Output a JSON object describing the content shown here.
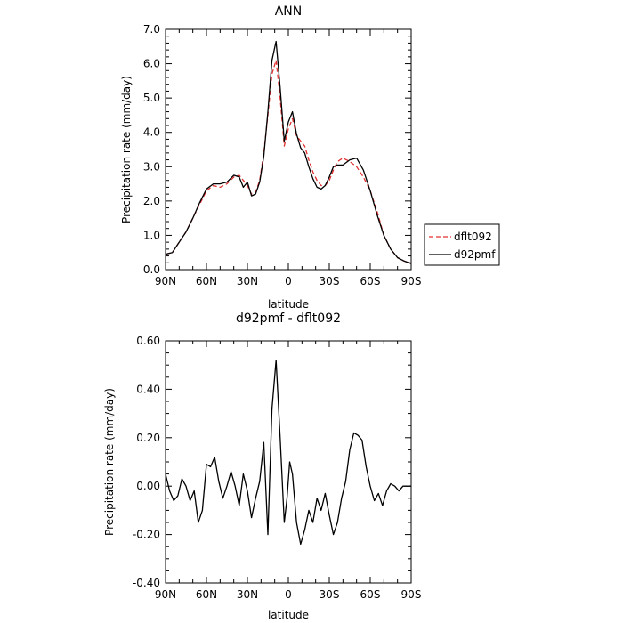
{
  "chart_data": [
    {
      "type": "line",
      "title": "ANN",
      "xlabel": "latitude",
      "ylabel": "Precipitation rate (mm/day)",
      "xticks": [
        "90N",
        "60N",
        "30N",
        "0",
        "30S",
        "60S",
        "90S"
      ],
      "xlim": [
        90,
        -90
      ],
      "ylim": [
        0.0,
        7.0
      ],
      "yticks": [
        "0.0",
        "1.0",
        "2.0",
        "3.0",
        "4.0",
        "5.0",
        "6.0",
        "7.0"
      ],
      "legend_position": "right, outside plot",
      "series": [
        {
          "name": "dflt092",
          "color": "#e03030",
          "dash": "dashed",
          "x": [
            90,
            85,
            80,
            75,
            70,
            65,
            60,
            55,
            50,
            45,
            40,
            36,
            33,
            30,
            27,
            24,
            21,
            18,
            15,
            12,
            9,
            6,
            3,
            0,
            -3,
            -6,
            -9,
            -12,
            -15,
            -18,
            -21,
            -24,
            -27,
            -30,
            -33,
            -36,
            -40,
            -45,
            -50,
            -55,
            -60,
            -65,
            -70,
            -75,
            -80,
            -85,
            -90
          ],
          "y": [
            0.45,
            0.5,
            0.8,
            1.1,
            1.5,
            1.9,
            2.3,
            2.45,
            2.4,
            2.5,
            2.7,
            2.75,
            2.6,
            2.45,
            2.2,
            2.25,
            2.6,
            3.4,
            4.5,
            5.7,
            6.1,
            5.0,
            3.6,
            4.1,
            4.4,
            3.9,
            3.75,
            3.6,
            3.2,
            2.85,
            2.6,
            2.45,
            2.45,
            2.6,
            2.9,
            3.15,
            3.25,
            3.15,
            3.0,
            2.7,
            2.3,
            1.7,
            1.0,
            0.6,
            0.35,
            0.25,
            0.18
          ]
        },
        {
          "name": "d92pmf",
          "color": "#000000",
          "dash": "solid",
          "x": [
            90,
            85,
            80,
            75,
            70,
            65,
            60,
            55,
            50,
            45,
            40,
            36,
            33,
            30,
            27,
            24,
            21,
            18,
            15,
            12,
            9,
            6,
            3,
            0,
            -3,
            -6,
            -9,
            -12,
            -15,
            -18,
            -21,
            -24,
            -27,
            -30,
            -33,
            -36,
            -40,
            -45,
            -50,
            -55,
            -60,
            -65,
            -70,
            -75,
            -80,
            -85,
            -90
          ],
          "y": [
            0.45,
            0.5,
            0.8,
            1.1,
            1.5,
            1.95,
            2.35,
            2.5,
            2.5,
            2.55,
            2.75,
            2.7,
            2.4,
            2.55,
            2.15,
            2.2,
            2.55,
            3.3,
            4.6,
            6.1,
            6.65,
            5.3,
            3.75,
            4.3,
            4.6,
            3.95,
            3.55,
            3.4,
            3.0,
            2.65,
            2.4,
            2.35,
            2.45,
            2.7,
            3.0,
            3.05,
            3.05,
            3.2,
            3.25,
            2.9,
            2.3,
            1.6,
            1.0,
            0.6,
            0.35,
            0.25,
            0.18
          ]
        }
      ]
    },
    {
      "type": "line",
      "title": "d92pmf - dflt092",
      "xlabel": "latitude",
      "ylabel": "Precipitation rate (mm/day)",
      "xticks": [
        "90N",
        "60N",
        "30N",
        "0",
        "30S",
        "60S",
        "90S"
      ],
      "xlim": [
        90,
        -90
      ],
      "ylim": [
        -0.4,
        0.6
      ],
      "yticks": [
        "-0.40",
        "-0.20",
        "0.00",
        "0.20",
        "0.40",
        "0.60"
      ],
      "series": [
        {
          "color": "#000000",
          "x": [
            90,
            87,
            84,
            81,
            78,
            75,
            72,
            69,
            66,
            63,
            60,
            57,
            54,
            51,
            48,
            45,
            42,
            39,
            36,
            33,
            30,
            27,
            24,
            21,
            18,
            15,
            12,
            9,
            6,
            3,
            1,
            -1,
            -3,
            -6,
            -9,
            -12,
            -15,
            -18,
            -21,
            -24,
            -27,
            -30,
            -33,
            -36,
            -39,
            -42,
            -45,
            -48,
            -51,
            -54,
            -57,
            -60,
            -63,
            -66,
            -69,
            -72,
            -75,
            -78,
            -81,
            -84,
            -87,
            -90
          ],
          "y": [
            0.05,
            -0.02,
            -0.06,
            -0.04,
            0.03,
            0.0,
            -0.06,
            -0.02,
            -0.15,
            -0.1,
            0.09,
            0.08,
            0.12,
            0.02,
            -0.05,
            0.0,
            0.06,
            0.0,
            -0.08,
            0.05,
            -0.02,
            -0.13,
            -0.05,
            0.02,
            0.18,
            -0.2,
            0.32,
            0.52,
            0.2,
            -0.15,
            -0.05,
            0.1,
            0.05,
            -0.15,
            -0.24,
            -0.18,
            -0.1,
            -0.15,
            -0.05,
            -0.1,
            -0.03,
            -0.12,
            -0.2,
            -0.15,
            -0.05,
            0.02,
            0.15,
            0.22,
            0.21,
            0.19,
            0.08,
            0.0,
            -0.06,
            -0.03,
            -0.08,
            -0.02,
            0.01,
            0.0,
            -0.02,
            0.0,
            0.0,
            0.0
          ]
        }
      ]
    }
  ],
  "legend": [
    {
      "label": "dflt092",
      "color": "#e03030",
      "dash": "dashed"
    },
    {
      "label": "d92pmf",
      "color": "#000000",
      "dash": "solid"
    }
  ]
}
